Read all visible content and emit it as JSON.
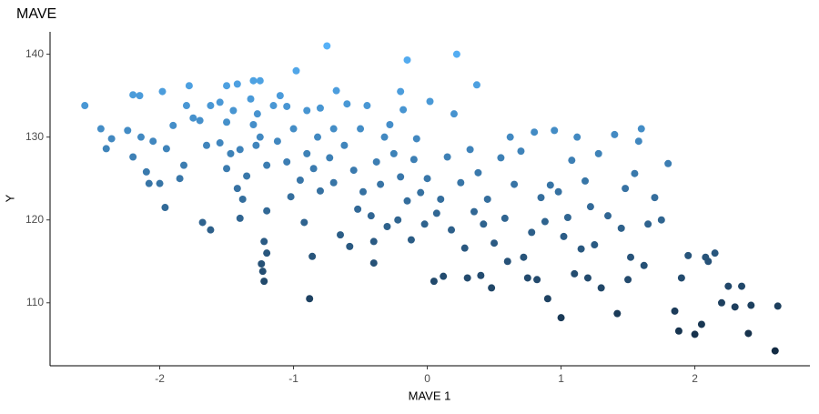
{
  "chart_data": {
    "type": "scatter",
    "title": "MAVE",
    "x_label": "MAVE 1",
    "y_label": "Y",
    "x": [
      -2.56,
      -2.44,
      -2.4,
      -2.36,
      -2.24,
      -2.2,
      -2.15,
      -2.2,
      -2.14,
      -2.1,
      -2.08,
      -2.05,
      -2,
      -1.98,
      -1.96,
      -1.95,
      -1.9,
      -1.85,
      -1.82,
      -1.8,
      -1.78,
      -1.75,
      -1.7,
      -1.68,
      -1.65,
      -1.62,
      -1.62,
      -1.55,
      -1.55,
      -1.5,
      -1.5,
      -1.5,
      -1.47,
      -1.45,
      -1.42,
      -1.42,
      -1.4,
      -1.4,
      -1.38,
      -1.35,
      -1.32,
      -1.3,
      -1.3,
      -1.28,
      -1.27,
      -1.25,
      -1.25,
      -1.24,
      -1.23,
      -1.22,
      -1.22,
      -1.2,
      -1.2,
      -1.2,
      -1.15,
      -1.12,
      -1.1,
      -1.05,
      -1.05,
      -1.02,
      -1,
      -0.98,
      -0.95,
      -0.92,
      -0.9,
      -0.9,
      -0.88,
      -0.86,
      -0.85,
      -0.82,
      -0.8,
      -0.8,
      -0.75,
      -0.73,
      -0.7,
      -0.7,
      -0.68,
      -0.65,
      -0.62,
      -0.6,
      -0.58,
      -0.55,
      -0.52,
      -0.5,
      -0.48,
      -0.45,
      -0.42,
      -0.4,
      -0.4,
      -0.38,
      -0.35,
      -0.32,
      -0.3,
      -0.28,
      -0.25,
      -0.22,
      -0.2,
      -0.2,
      -0.18,
      -0.15,
      -0.15,
      -0.12,
      -0.1,
      -0.08,
      -0.05,
      -0.02,
      0,
      0.02,
      0.05,
      0.07,
      0.1,
      0.12,
      0.15,
      0.18,
      0.2,
      0.22,
      0.25,
      0.28,
      0.3,
      0.32,
      0.35,
      0.37,
      0.38,
      0.4,
      0.42,
      0.45,
      0.48,
      0.5,
      0.55,
      0.58,
      0.6,
      0.62,
      0.65,
      0.7,
      0.72,
      0.75,
      0.78,
      0.8,
      0.82,
      0.85,
      0.88,
      0.9,
      0.92,
      0.95,
      0.98,
      1,
      1.02,
      1.05,
      1.08,
      1.1,
      1.12,
      1.15,
      1.18,
      1.2,
      1.22,
      1.25,
      1.28,
      1.3,
      1.35,
      1.4,
      1.42,
      1.45,
      1.48,
      1.5,
      1.52,
      1.55,
      1.58,
      1.6,
      1.62,
      1.65,
      1.7,
      1.75,
      1.8,
      1.85,
      1.88,
      1.9,
      1.95,
      2,
      2.05,
      2.08,
      2.1,
      2.15,
      2.2,
      2.25,
      2.3,
      2.35,
      2.4,
      2.42,
      2.6,
      2.62
    ],
    "values": [
      133.8,
      131,
      128.6,
      129.8,
      130.8,
      135.1,
      135,
      127.6,
      130,
      125.8,
      124.4,
      129.5,
      124.4,
      135.5,
      121.5,
      128.6,
      131.4,
      125,
      126.6,
      133.8,
      136.2,
      132.3,
      132,
      119.7,
      129,
      118.8,
      133.8,
      129.3,
      134.2,
      136.2,
      126.2,
      131.8,
      128,
      133.2,
      136.4,
      123.8,
      120.2,
      128.5,
      122.5,
      125.3,
      134.6,
      131.5,
      136.8,
      129,
      132.8,
      136.8,
      130,
      114.7,
      113.8,
      112.6,
      117.4,
      116,
      126.6,
      121.1,
      133.8,
      129.5,
      135,
      127,
      133.7,
      122.8,
      131,
      138,
      124.8,
      119.7,
      128,
      133.2,
      110.5,
      115.6,
      126.2,
      130,
      123.5,
      133.5,
      141,
      127.5,
      124.5,
      131,
      135.6,
      118.2,
      129,
      134,
      116.8,
      126,
      121.3,
      131,
      123.4,
      133.8,
      120.5,
      114.8,
      117.4,
      127,
      124.3,
      130,
      119.2,
      131.5,
      128,
      120,
      125.2,
      135.5,
      133.3,
      139.3,
      122.3,
      117.6,
      127.3,
      129.8,
      123.3,
      119.5,
      125,
      134.3,
      112.6,
      120.8,
      122.5,
      113.2,
      127.6,
      118.8,
      132.8,
      140,
      124.5,
      116.6,
      113,
      128.5,
      121,
      136.3,
      125.7,
      113.3,
      119.5,
      122.5,
      111.8,
      117.2,
      127.5,
      120.2,
      115,
      130,
      124.3,
      128.3,
      115.5,
      113,
      118.5,
      130.6,
      112.8,
      122.7,
      119.8,
      110.5,
      124.2,
      130.8,
      123.4,
      108.2,
      118,
      120.3,
      127.2,
      113.5,
      130,
      116.5,
      124.7,
      113,
      121.6,
      117,
      128,
      111.8,
      120.5,
      130.3,
      108.7,
      119,
      123.8,
      112.8,
      115.5,
      125.6,
      129.5,
      131,
      114.5,
      119.5,
      122.7,
      120,
      126.8,
      109,
      106.6,
      113,
      115.7,
      106.2,
      107.4,
      115.5,
      115,
      116,
      110,
      112,
      109.5,
      112,
      106.3,
      109.7,
      104.2,
      109.6
    ],
    "color_scale": {
      "low": "#132B43",
      "high": "#56B1F7"
    },
    "xlim": [
      -2.82,
      2.86
    ],
    "ylim": [
      102.4,
      142.7
    ],
    "xticks": [
      -2,
      -1,
      0,
      1,
      2
    ],
    "yticks": [
      110,
      120,
      130,
      140
    ],
    "grid": false
  }
}
